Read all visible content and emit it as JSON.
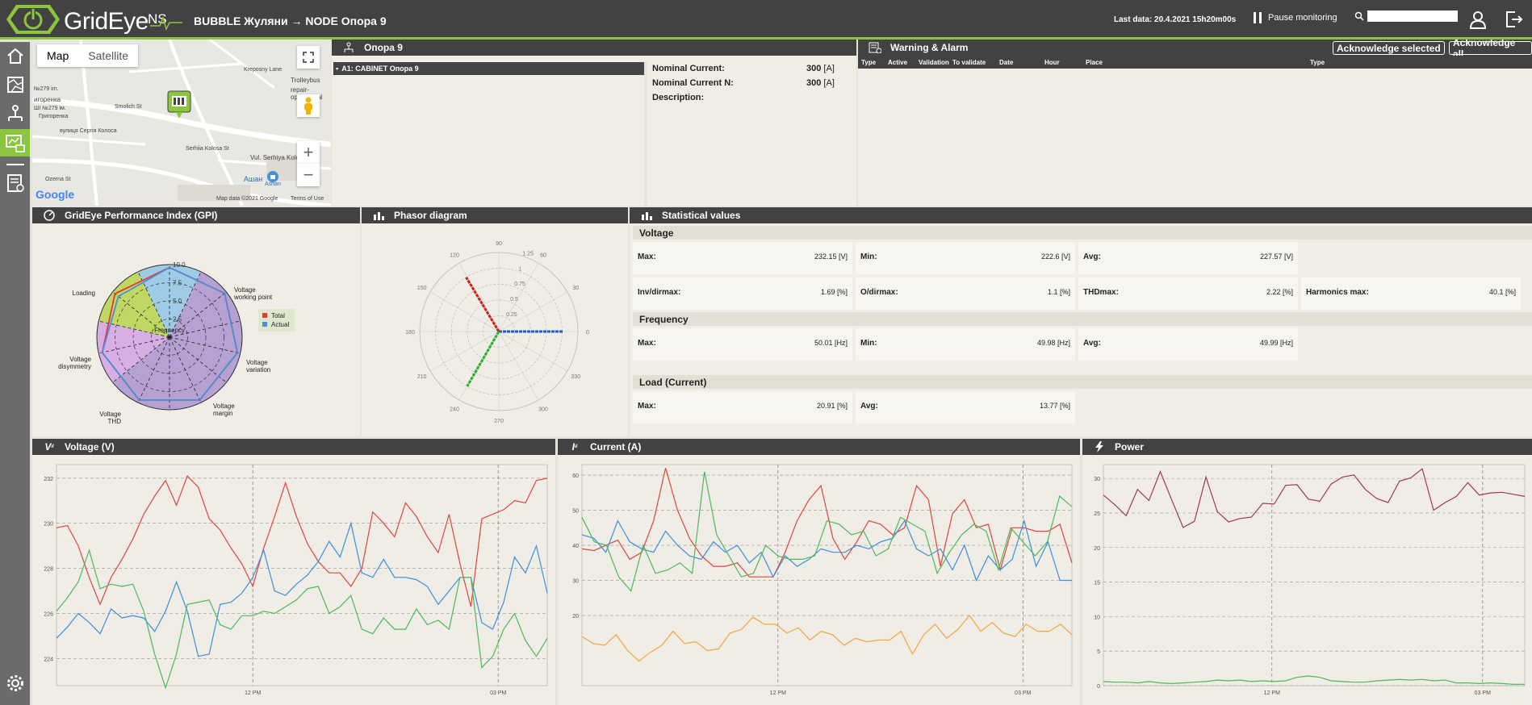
{
  "topbar": {
    "logo_text": "GridEye",
    "logo_ns": "NS",
    "breadcrumb": "BUBBLE Жуляни → NODE Опора 9",
    "last_data": "Last data: 20.4.2021 15h20m00s",
    "pause_label": "Pause monitoring",
    "search_value": ""
  },
  "map": {
    "tab_map": "Map",
    "tab_satellite": "Satellite",
    "labels": [
      "№279 im.",
      "игоренка",
      "ШI №279 ім.",
      "Григоренка",
      "вулиця Сергія Колоса",
      "Serhiia Kolosa St",
      "Vul. Serhiya Kolosa",
      "Trolleybus",
      "repair-operational",
      "Ашан",
      "Kreposny Lane",
      "Smolіch St",
      "Ozerna St",
      "Ashan"
    ],
    "footer": "Map data ©2021 Google",
    "terms": "Terms of Use",
    "google": "Google"
  },
  "node": {
    "title": "Опора 9",
    "selected_item": "A1: CABINET Опора 9",
    "rows": [
      {
        "label": "Nominal Current:",
        "value": "300",
        "unit": "[A]"
      },
      {
        "label": "Nominal Current N:",
        "value": "300",
        "unit": "[A]"
      },
      {
        "label": "Description:",
        "value": "",
        "unit": ""
      }
    ]
  },
  "warnings": {
    "title": "Warning & Alarm",
    "ack_selected": "Acknowledge selected",
    "ack_all": "Acknowledge all",
    "columns": [
      "Type",
      "Active",
      "Validation",
      "To validate",
      "Date",
      "Hour",
      "Place",
      "Type"
    ]
  },
  "gpi": {
    "title": "GridEye Performance Index (GPI)",
    "axes": [
      "Frequency",
      "Voltage working point",
      "Voltage variation",
      "Voltage margin",
      "Voltage THD",
      "Voltage disymmetry",
      "Loading"
    ],
    "ticks": [
      "2.5",
      "5.0",
      "7.5",
      "10.0"
    ],
    "legend": [
      {
        "name": "Total",
        "color": "#e53935"
      },
      {
        "name": "Actual",
        "color": "#4a90d9"
      }
    ],
    "total": [
      9.6,
      9.7,
      9.6,
      9.6,
      9.6,
      9.5,
      9.6
    ],
    "actual": [
      9.6,
      9.7,
      9.6,
      9.6,
      9.6,
      9.5,
      9.0
    ],
    "fills": [
      "#8fc5e6",
      "#ad93cf",
      "#ad93cf",
      "#ad93cf",
      "#ad93cf",
      "#d3a3e4",
      "#b7d24c"
    ]
  },
  "phasor": {
    "title": "Phasor diagram",
    "angle_labels": [
      "0",
      "30",
      "60",
      "90",
      "120",
      "150",
      "180",
      "210",
      "240",
      "270",
      "300",
      "330"
    ],
    "radius_labels": [
      "0.25",
      "0.5",
      "0.75",
      "1",
      "1.25"
    ],
    "vectors": [
      {
        "angle": 0,
        "magnitude": 1.02,
        "color": "#1e5bd6"
      },
      {
        "angle": 121,
        "magnitude": 1.0,
        "color": "#cc1f1f"
      },
      {
        "angle": 240,
        "magnitude": 1.0,
        "color": "#2eae2e"
      }
    ]
  },
  "stats": {
    "title": "Statistical values",
    "voltage_label": "Voltage",
    "frequency_label": "Frequency",
    "load_label": "Load (Current)",
    "voltage": [
      {
        "label": "Max:",
        "value": "232.15 [V]"
      },
      {
        "label": "Min:",
        "value": "222.6 [V]"
      },
      {
        "label": "Avg:",
        "value": "227.57 [V]"
      },
      {
        "label": "Inv/dirmax:",
        "value": "1.69 [%]"
      },
      {
        "label": "O/dirmax:",
        "value": "1.1 [%]"
      },
      {
        "label": "THDmax:",
        "value": "2.22 [%]"
      },
      {
        "label": "Harmonics max:",
        "value": "40.1 [%]"
      }
    ],
    "frequency": [
      {
        "label": "Max:",
        "value": "50.01 [Hz]"
      },
      {
        "label": "Min:",
        "value": "49.98 [Hz]"
      },
      {
        "label": "Avg:",
        "value": "49.99 [Hz]"
      }
    ],
    "load": [
      {
        "label": "Max:",
        "value": "20.91 [%]"
      },
      {
        "label": "Avg:",
        "value": "13.77 [%]"
      }
    ]
  },
  "chart_data": [
    {
      "type": "line",
      "title": "Voltage (V)",
      "x_tick_labels": [
        "12 PM",
        "03 PM"
      ],
      "y_ticks": [
        224,
        226,
        228,
        230,
        232
      ],
      "ylim": [
        222.8,
        232.6
      ],
      "series": [
        {
          "color": "#e0453a",
          "values": [
            229.8,
            229.9,
            229.0,
            227.6,
            226.4,
            227.6,
            228.4,
            229.3,
            230.4,
            231.2,
            231.9,
            230.8,
            232.1,
            231.6,
            230.2,
            229.7,
            228.9,
            228.2,
            227.2,
            228.9,
            230.3,
            231.8,
            230.3,
            229.1,
            228.3,
            227.8,
            227.8,
            227.2,
            228.0,
            230.5,
            230.0,
            229.4,
            230.9,
            230.3,
            229.4,
            228.7,
            230.4,
            228.2,
            226.3,
            230.2,
            230.4,
            230.6,
            231.0,
            230.9,
            231.9,
            232.0
          ]
        },
        {
          "color": "#3c8fe0",
          "values": [
            224.9,
            225.4,
            226.0,
            225.6,
            225.1,
            226.2,
            225.8,
            225.9,
            225.8,
            225.2,
            226.1,
            227.4,
            226.1,
            224.1,
            224.2,
            226.4,
            226.5,
            226.9,
            227.6,
            228.8,
            227.0,
            226.8,
            227.3,
            227.7,
            228.3,
            229.2,
            228.5,
            230.0,
            227.8,
            227.6,
            228.4,
            227.6,
            227.6,
            227.5,
            227.2,
            226.4,
            227.0,
            227.6,
            227.6,
            225.6,
            225.3,
            226.5,
            228.5,
            227.8,
            229.0,
            226.9
          ]
        },
        {
          "color": "#4fb85a",
          "values": [
            226.1,
            226.7,
            227.4,
            228.8,
            227.1,
            227.3,
            227.2,
            227.3,
            226.1,
            224.2,
            222.7,
            224.2,
            226.4,
            226.5,
            226.6,
            225.5,
            225.3,
            225.9,
            225.9,
            226.1,
            226.0,
            226.3,
            226.6,
            227.1,
            227.2,
            226.0,
            226.3,
            226.8,
            225.3,
            225.1,
            225.8,
            225.3,
            225.3,
            226.2,
            225.5,
            225.7,
            225.3,
            227.6,
            227.6,
            223.6,
            224.1,
            225.3,
            226.0,
            224.8,
            224.1,
            224.9
          ]
        }
      ]
    },
    {
      "type": "line",
      "title": "Current (A)",
      "x_tick_labels": [
        "12 PM",
        "03 PM"
      ],
      "y_ticks": [
        20.0,
        30.0,
        40.0,
        50.0,
        60.0
      ],
      "ylim": [
        0,
        63
      ],
      "series": [
        {
          "color": "#e0453a",
          "values": [
            39.0,
            38.5,
            40.0,
            41.5,
            36.0,
            38.0,
            47.0,
            62.0,
            50.0,
            42.0,
            37.0,
            34.0,
            34.0,
            35.0,
            31.0,
            31.0,
            31.0,
            38.0,
            47.0,
            53.0,
            57.0,
            42.0,
            36.0,
            41.0,
            47.0,
            46.0,
            43.0,
            45.0,
            57.0,
            53.0,
            34.0,
            49.0,
            53.0,
            45.0,
            46.0,
            33.0,
            45.0,
            45.0,
            44.0,
            44.0,
            46.0,
            35.0
          ]
        },
        {
          "color": "#3c8fe0",
          "values": [
            43.0,
            42.0,
            38.0,
            47.0,
            41.0,
            39.0,
            38.0,
            44.0,
            40.0,
            37.0,
            36.0,
            41.0,
            38.0,
            40.0,
            35.0,
            38.0,
            31.0,
            37.0,
            34.0,
            36.0,
            39.0,
            38.0,
            38.0,
            40.0,
            39.0,
            41.0,
            42.0,
            47.0,
            39.0,
            37.0,
            39.0,
            33.0,
            40.0,
            30.0,
            37.0,
            33.0,
            36.0,
            47.0,
            34.0,
            41.0,
            30.0,
            30.0
          ]
        },
        {
          "color": "#4fb85a",
          "values": [
            48.0,
            41.0,
            40.0,
            31.0,
            27.0,
            40.0,
            32.0,
            33.0,
            35.0,
            32.0,
            61.0,
            43.0,
            37.0,
            31.0,
            32.0,
            40.0,
            37.0,
            36.0,
            36.0,
            37.0,
            47.0,
            46.0,
            43.0,
            44.0,
            37.0,
            39.0,
            48.0,
            46.0,
            44.0,
            32.0,
            38.0,
            43.0,
            46.0,
            44.0,
            33.0,
            45.0,
            41.0,
            37.0,
            41.0,
            54.0,
            51.0
          ]
        },
        {
          "color": "#f4a53c",
          "values": [
            14.0,
            12.0,
            11.5,
            14.5,
            10.0,
            7.0,
            9.5,
            11.5,
            15.5,
            12.0,
            12.5,
            10.0,
            10.5,
            15.0,
            16.0,
            19.5,
            17.5,
            17.5,
            15.0,
            16.5,
            13.0,
            15.5,
            14.5,
            11.5,
            13.5,
            12.5,
            13.0,
            13.0,
            15.5,
            9.0,
            14.5,
            17.5,
            13.5,
            16.0,
            20.0,
            15.5,
            18.0,
            15.0,
            14.0,
            17.5,
            15.5,
            15.5,
            17.5,
            14.5
          ]
        }
      ]
    },
    {
      "type": "line",
      "title": "Power",
      "x_tick_labels": [
        "12 PM",
        "03 PM"
      ],
      "y_ticks": [
        0.0,
        5.0,
        10.0,
        15.0,
        20.0,
        25.0,
        30.0
      ],
      "ylim": [
        0,
        32
      ],
      "series": [
        {
          "color": "#a0385a",
          "values": [
            27.6,
            26.2,
            24.6,
            28.4,
            26.8,
            31.0,
            26.9,
            22.9,
            23.8,
            30.2,
            25.2,
            23.7,
            24.2,
            24.4,
            26.4,
            26.3,
            29.0,
            29.1,
            27.0,
            26.7,
            29.2,
            30.2,
            30.5,
            28.4,
            27.1,
            26.5,
            29.6,
            30.1,
            31.4,
            25.4,
            26.5,
            27.4,
            29.4,
            27.6,
            27.9,
            28.0,
            27.7,
            27.4
          ]
        },
        {
          "color": "#4fb85a",
          "values": [
            0.6,
            0.5,
            0.5,
            0.4,
            0.6,
            0.4,
            0.3,
            0.4,
            0.5,
            0.6,
            0.8,
            0.7,
            0.8,
            0.6,
            0.7,
            0.6,
            0.7,
            1.2,
            1.4,
            1.2,
            0.7,
            0.6,
            0.5,
            0.5,
            0.7,
            0.8,
            0.9,
            0.8,
            0.9,
            0.7,
            0.8,
            0.4,
            0.4,
            0.3,
            0.4,
            0.3,
            0.2,
            0.2
          ]
        }
      ]
    }
  ]
}
